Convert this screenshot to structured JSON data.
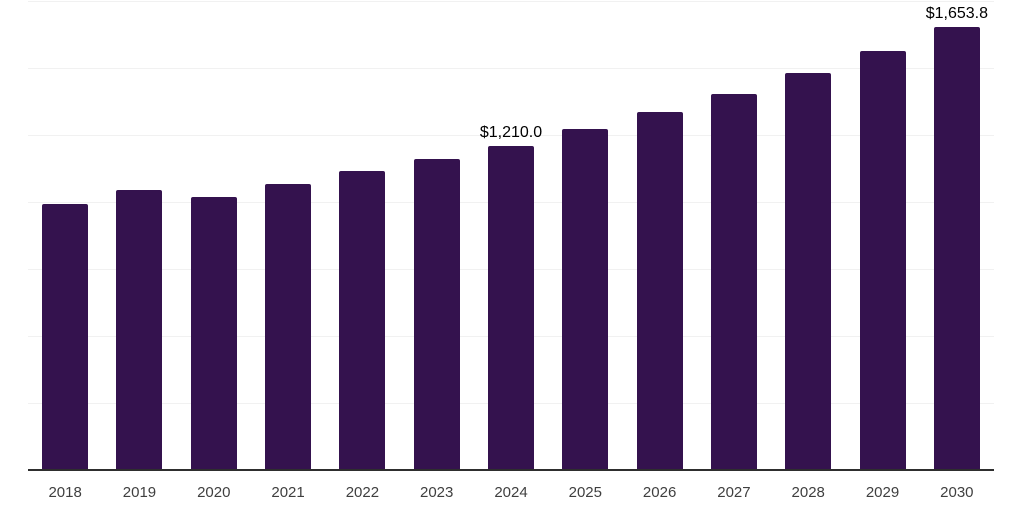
{
  "page": {
    "background": "#ffffff"
  },
  "chart_data": {
    "type": "bar",
    "title": "",
    "xlabel": "",
    "ylabel": "",
    "categories": [
      "2018",
      "2019",
      "2020",
      "2021",
      "2022",
      "2023",
      "2024",
      "2025",
      "2026",
      "2027",
      "2028",
      "2029",
      "2030"
    ],
    "values": [
      994,
      1043,
      1020,
      1069,
      1114,
      1161,
      1210.0,
      1272,
      1336,
      1403,
      1481,
      1565,
      1653.8
    ],
    "ylim": [
      0,
      1750
    ],
    "grid_step": 250,
    "grid": true,
    "legend": false,
    "bar_color": "#34124e",
    "axis_color": "#2e2e2e",
    "gridline_color": "#f1f1f1",
    "tick_label_color": "#3f3f3f",
    "data_label_color": "#000000",
    "annotations": [
      {
        "category": "2024",
        "text": "$1,210.0"
      },
      {
        "category": "2030",
        "text": "$1,653.8"
      }
    ]
  }
}
